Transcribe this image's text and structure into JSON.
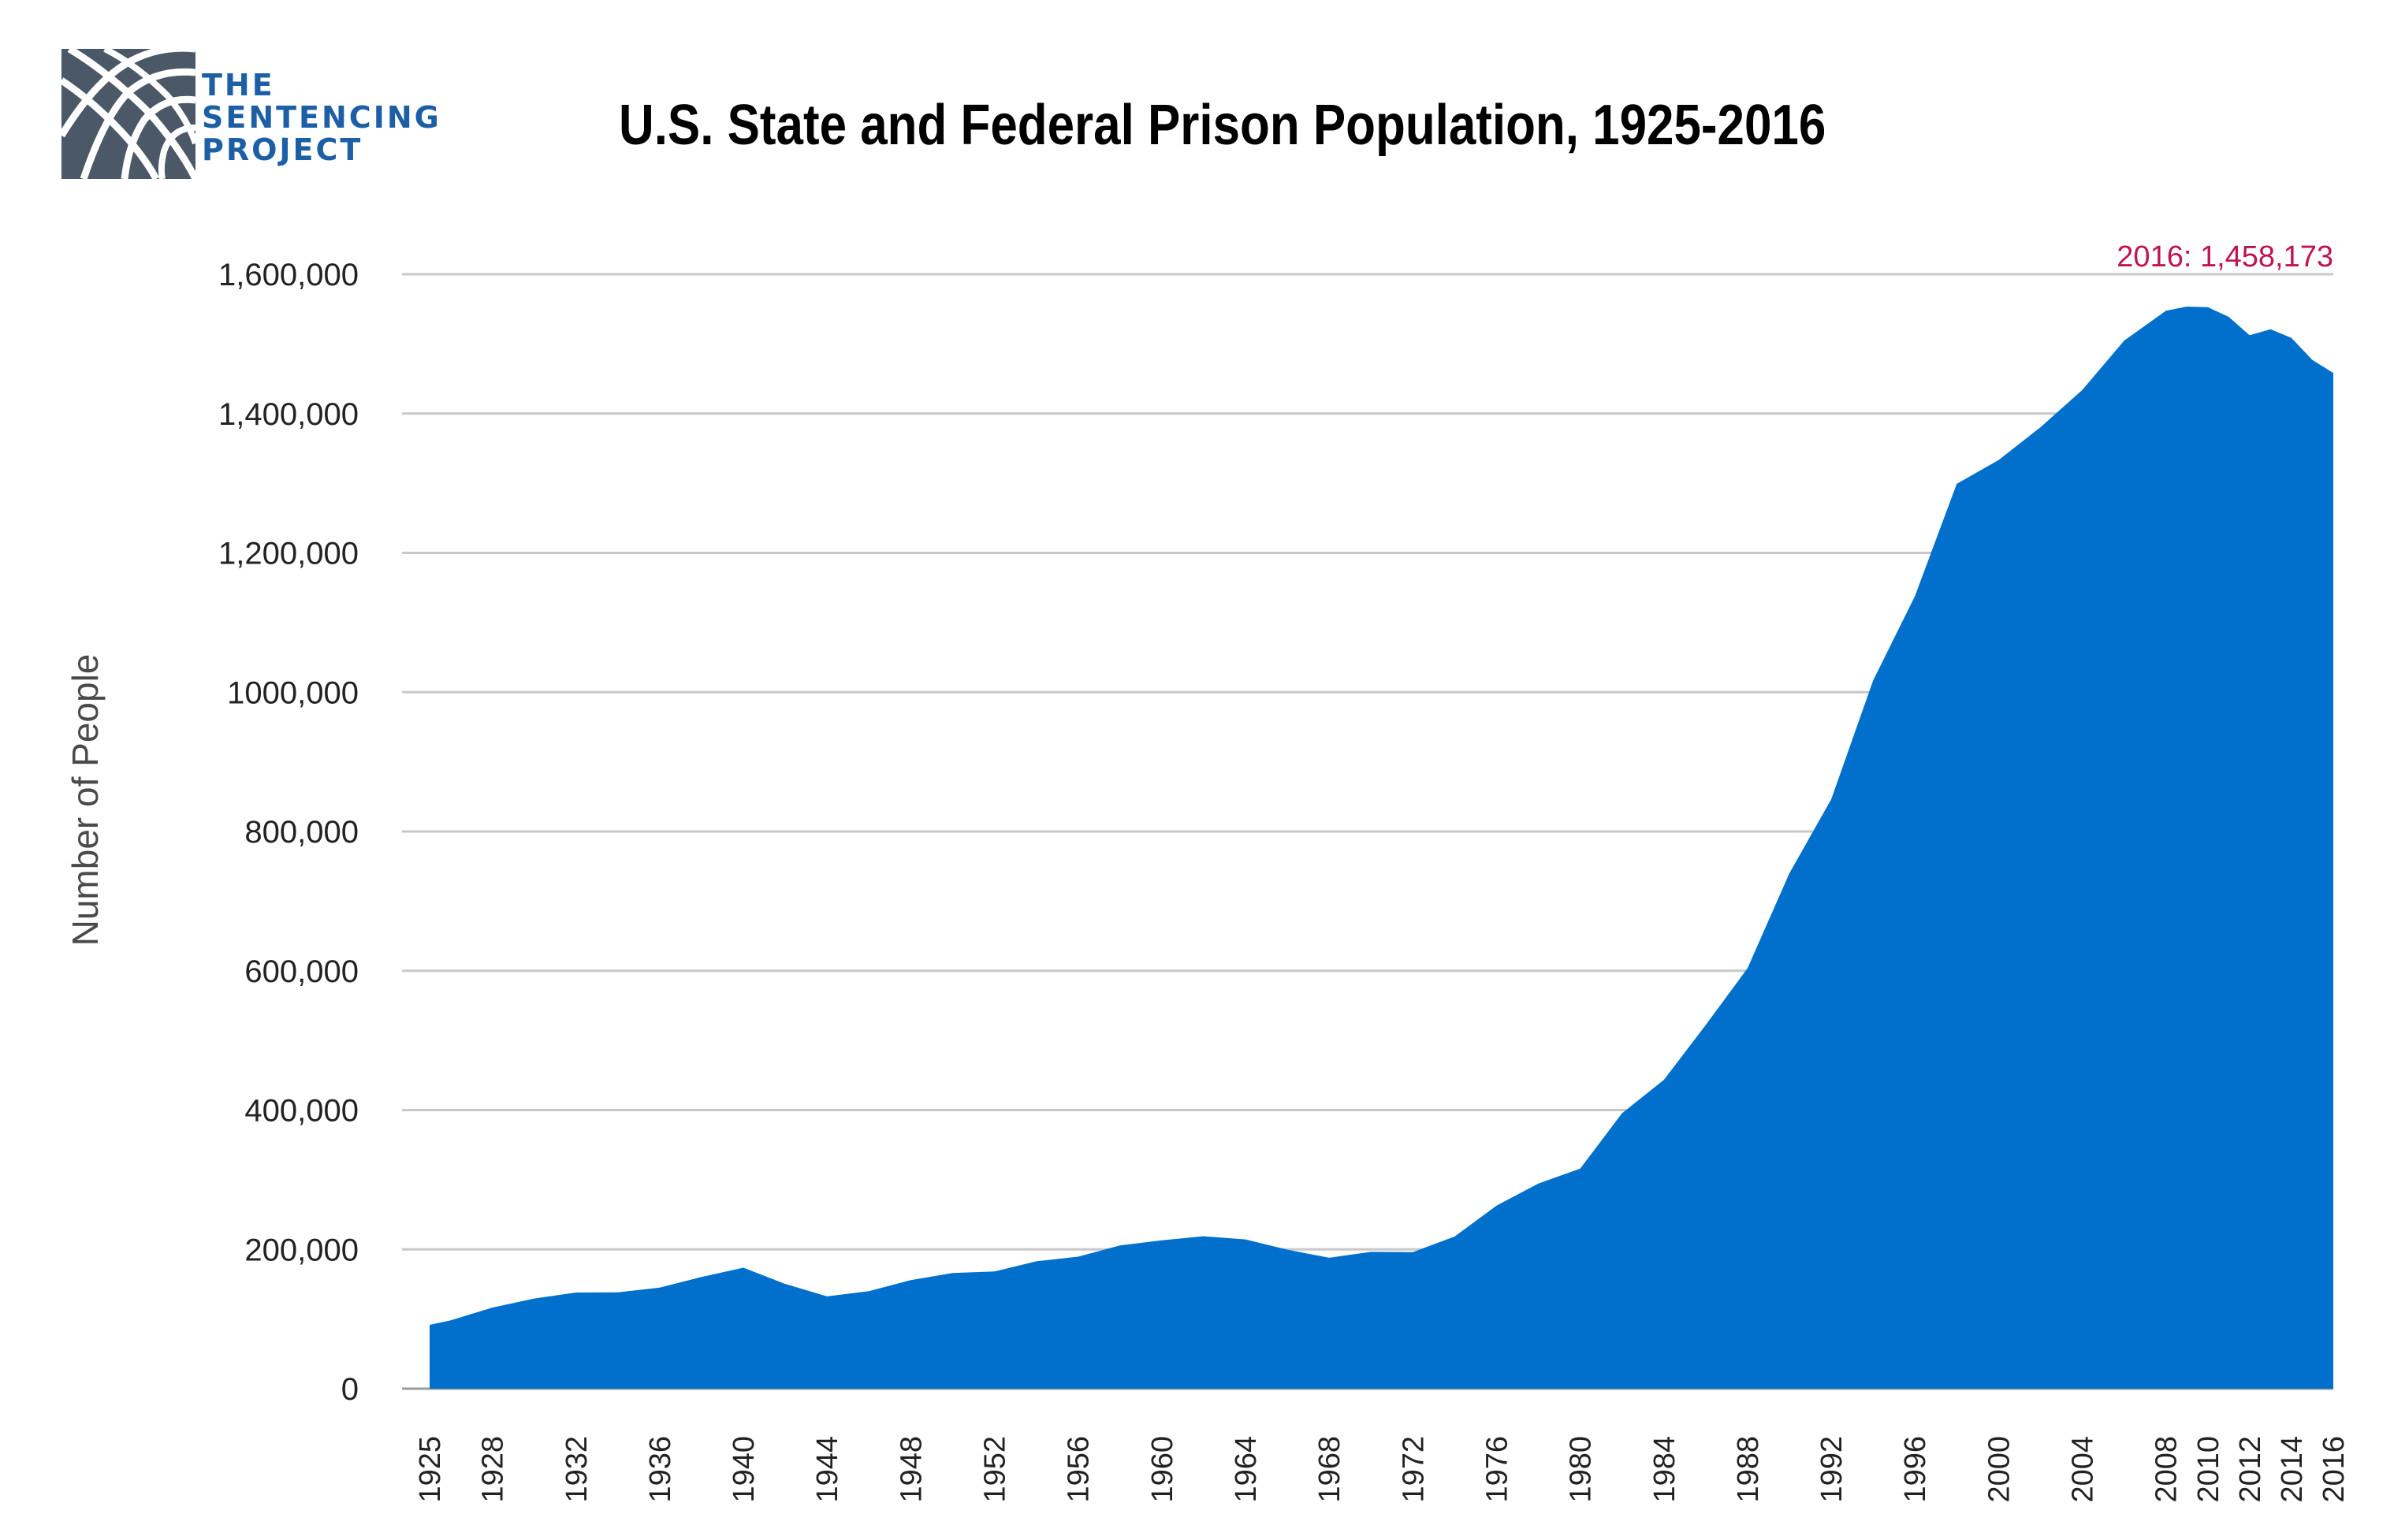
{
  "logo": {
    "lines": [
      "THE",
      "SENTENCING",
      "PROJECT"
    ],
    "text_color": "#1d5fa5",
    "mark_color": "#4a5867"
  },
  "chart_data": {
    "type": "area",
    "title": "U.S. State and Federal Prison Population, 1925-2016",
    "xlabel": "",
    "ylabel": "Number of People",
    "ylim": [
      0,
      1600000
    ],
    "grid": true,
    "fill_color": "#0070cc",
    "yticks": [
      0,
      200000,
      400000,
      600000,
      800000,
      1000000,
      1200000,
      1400000,
      1600000
    ],
    "ytick_labels": [
      "0",
      "200,000",
      "400,000",
      "600,000",
      "800,000",
      "1000,000",
      "1,200,000",
      "1,400,000",
      "1,600,000"
    ],
    "xticks": [
      1925,
      1928,
      1932,
      1936,
      1940,
      1944,
      1948,
      1952,
      1956,
      1960,
      1964,
      1968,
      1972,
      1976,
      1980,
      1984,
      1988,
      1992,
      1996,
      2000,
      2004,
      2008,
      2010,
      2012,
      2014,
      2016
    ],
    "series": [
      {
        "x": [
          1925,
          1926,
          1928,
          1930,
          1932,
          1934,
          1936,
          1938,
          1940,
          1942,
          1944,
          1946,
          1948,
          1950,
          1952,
          1954,
          1956,
          1958,
          1960,
          1962,
          1964,
          1966,
          1968,
          1970,
          1972,
          1974,
          1976,
          1978,
          1980,
          1982,
          1984,
          1986,
          1988,
          1990,
          1992,
          1994,
          1996,
          1998,
          2000,
          2002,
          2004,
          2006,
          2008,
          2009,
          2010,
          2011,
          2012,
          2013,
          2014,
          2015,
          2016
        ],
        "y": [
          91669,
          97991,
          116390,
          129453,
          137997,
          138316,
          145038,
          160285,
          173706,
          150384,
          132456,
          140079,
          155977,
          166165,
          168233,
          182901,
          189565,
          205643,
          212953,
          218830,
          214336,
          199654,
          187914,
          196429,
          196092,
          218466,
          262833,
          294396,
          315974,
          395516,
          443398,
          522084,
          603732,
          739980,
          846277,
          1016691,
          1137722,
          1299096,
          1333316,
          1380370,
          1433728,
          1504598,
          1547742,
          1553574,
          1552669,
          1538847,
          1512430,
          1521000,
          1508636,
          1476847,
          1458173
        ]
      }
    ],
    "annotations": [
      {
        "text": "2016: 1,458,173",
        "x": 2016,
        "y": 1458173
      }
    ]
  }
}
